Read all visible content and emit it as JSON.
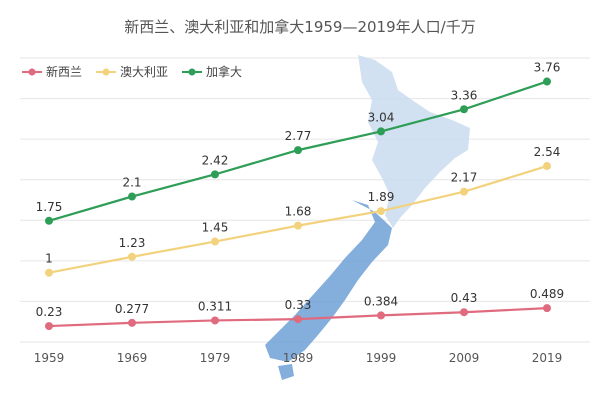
{
  "chart_data": {
    "type": "line",
    "title": "新西兰、澳大利亚和加拿大1959—2019年人口/千万",
    "categories": [
      "1959",
      "1969",
      "1979",
      "1989",
      "1999",
      "2009",
      "2019"
    ],
    "series": [
      {
        "name": "新西兰",
        "color": "#e06a7e",
        "values": [
          0.23,
          0.277,
          0.311,
          0.33,
          0.384,
          0.43,
          0.489
        ],
        "labels": [
          "0.23",
          "0.277",
          "0.311",
          "0.33",
          "0.384",
          "0.43",
          "0.489"
        ]
      },
      {
        "name": "澳大利亚",
        "color": "#f2d27c",
        "values": [
          1,
          1.23,
          1.45,
          1.68,
          1.89,
          2.17,
          2.54
        ],
        "labels": [
          "1",
          "1.23",
          "1.45",
          "1.68",
          "1.89",
          "2.17",
          "2.54"
        ]
      },
      {
        "name": "加拿大",
        "color": "#2e9e57",
        "values": [
          1.75,
          2.1,
          2.42,
          2.77,
          3.04,
          3.36,
          3.76
        ],
        "labels": [
          "1.75",
          "2.1",
          "2.42",
          "2.77",
          "3.04",
          "3.36",
          "3.76"
        ]
      }
    ],
    "ylim": [
      0,
      4.1
    ],
    "grid": true,
    "legend": "top-left",
    "background_image": "new-zealand-map"
  }
}
